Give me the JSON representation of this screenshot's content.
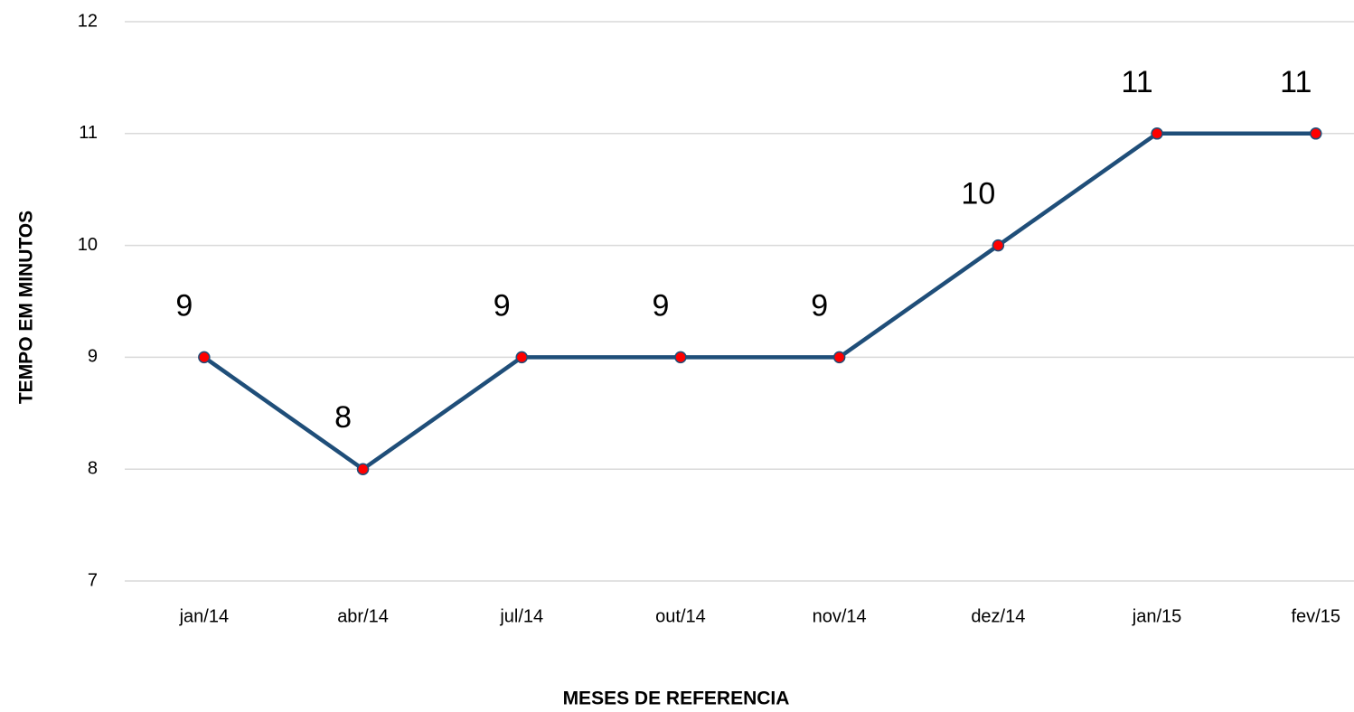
{
  "chart_data": {
    "type": "line",
    "x_label": "MESES DE REFERENCIA",
    "y_label": "TEMPO EM MINUTOS",
    "categories": [
      "jan/14",
      "abr/14",
      "jul/14",
      "out/14",
      "nov/14",
      "dez/14",
      "jan/15",
      "fev/15"
    ],
    "values": [
      9,
      8,
      9,
      9,
      9,
      10,
      11,
      11
    ],
    "color": "#1f4e79",
    "marker_color": "#ff0000",
    "ylim": [
      7,
      12
    ],
    "yticks": [
      7,
      8,
      9,
      10,
      11,
      12
    ],
    "grid": true
  }
}
